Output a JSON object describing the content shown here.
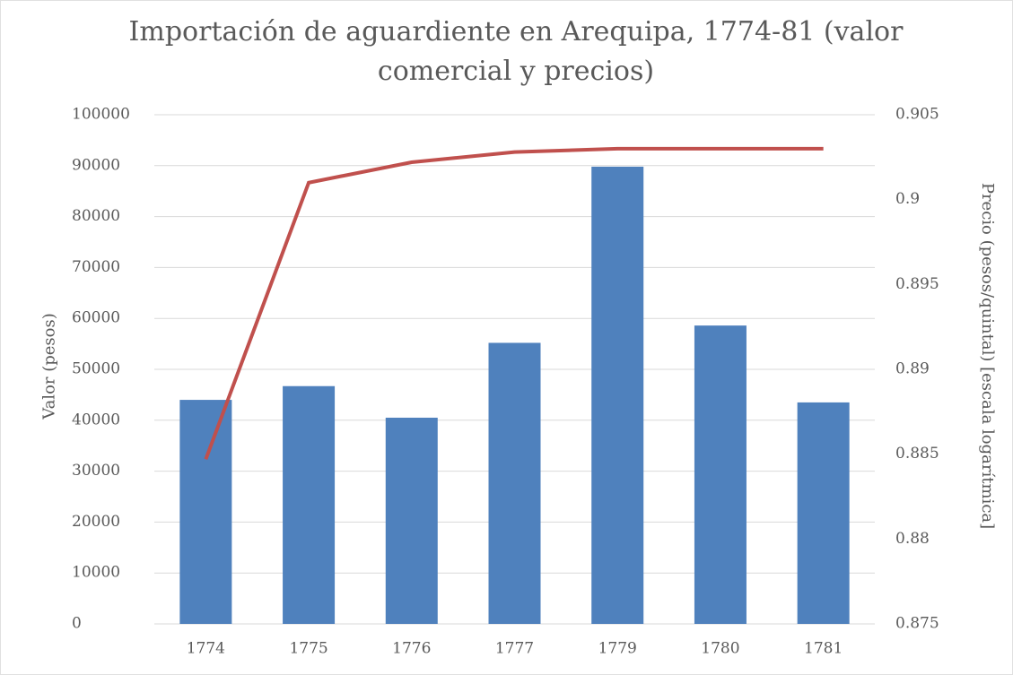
{
  "chart_data": {
    "type": "bar",
    "title": "Importación de aguardiente en Arequipa, 1774-81 (valor comercial y precios)",
    "categories": [
      "1774",
      "1775",
      "1776",
      "1777",
      "1779",
      "1780",
      "1781"
    ],
    "ylabel": "Valor (pesos)",
    "y2label": "Precio (pesos/quintal) [escala logarítmica]",
    "series": [
      {
        "name": "Valor",
        "type": "bar",
        "color": "#4f81bd",
        "values": [
          44000,
          46700,
          40500,
          55200,
          89800,
          58600,
          43500
        ]
      },
      {
        "name": "Precio",
        "type": "line",
        "axis": "y2",
        "color": "#c0504d",
        "values": [
          0.8847,
          0.901,
          0.9022,
          0.9028,
          0.903,
          0.903,
          0.903
        ]
      }
    ],
    "ylim": [
      0,
      100000
    ],
    "yticks": [
      0,
      10000,
      20000,
      30000,
      40000,
      50000,
      60000,
      70000,
      80000,
      90000,
      100000
    ],
    "y2lim": [
      0.875,
      0.905
    ],
    "y2ticks": [
      0.875,
      0.88,
      0.885,
      0.89,
      0.895,
      0.9,
      0.905
    ],
    "grid": true
  }
}
